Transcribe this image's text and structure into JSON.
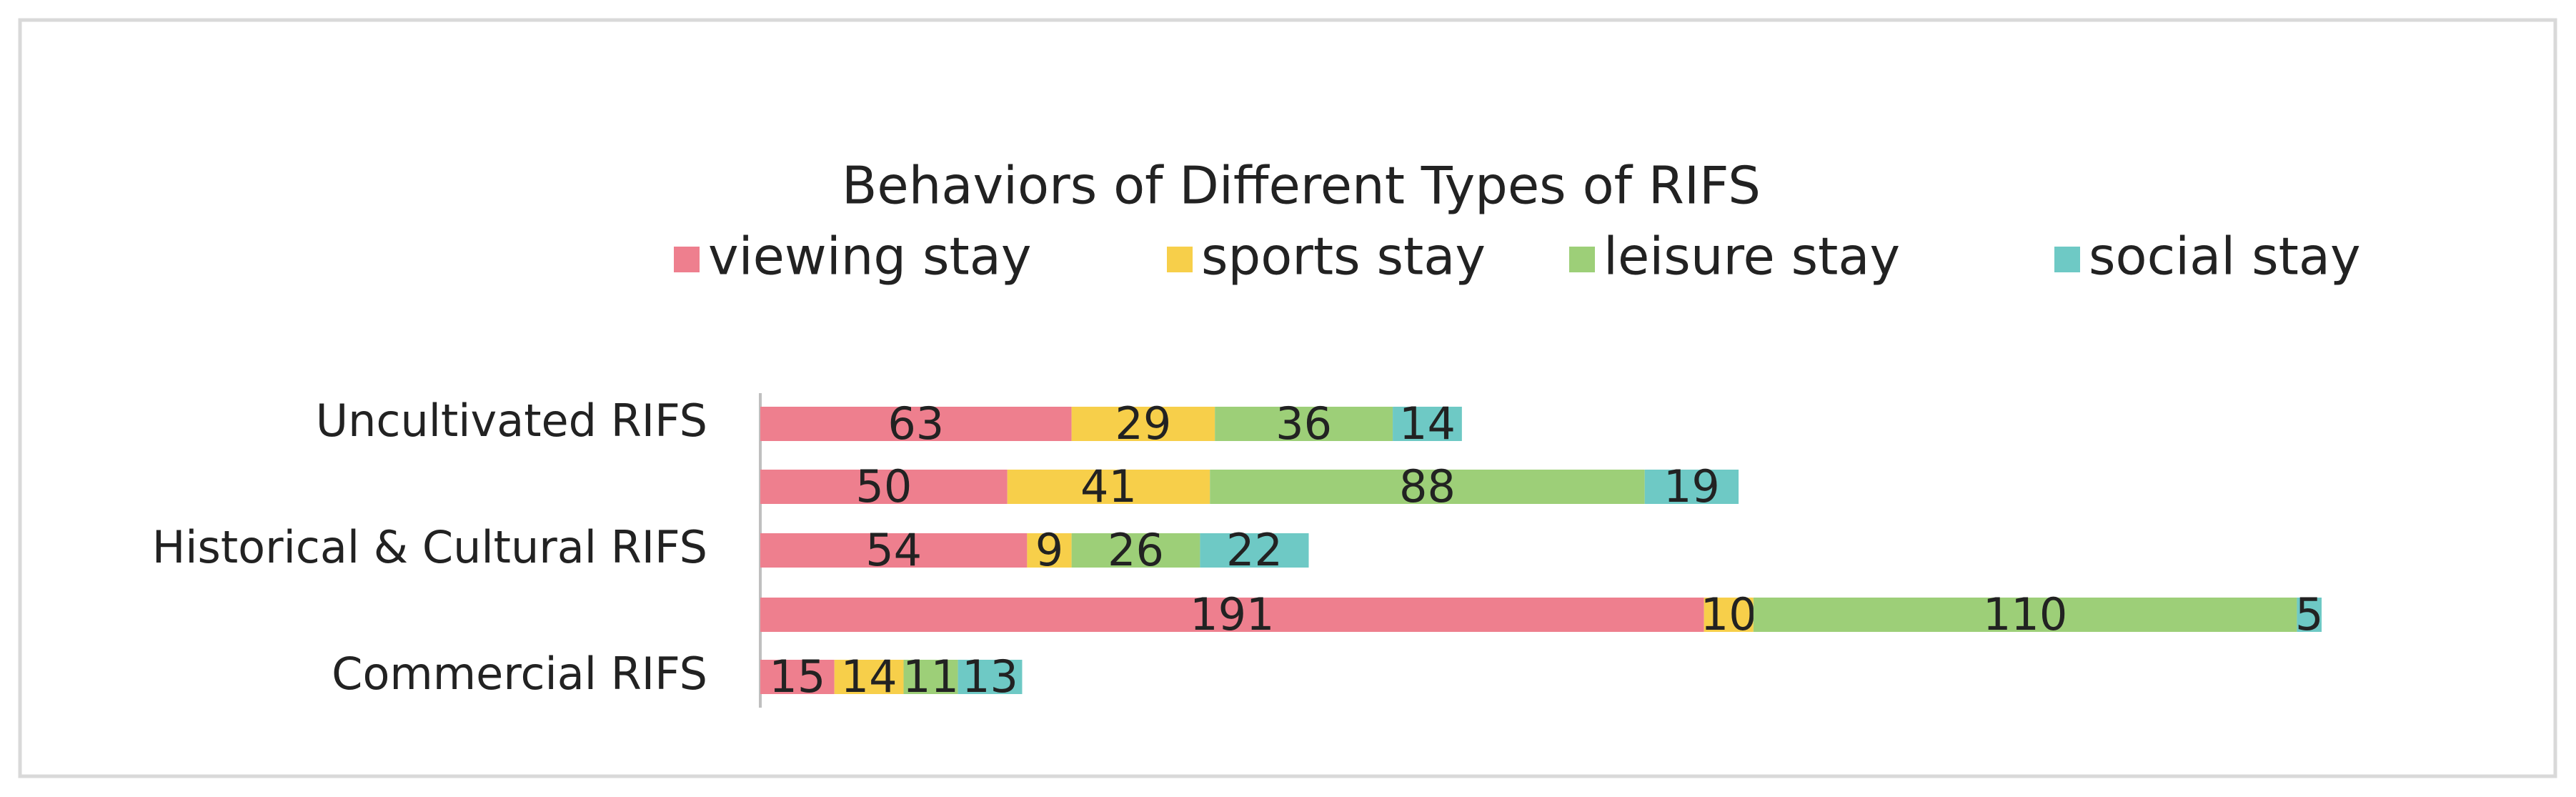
{
  "chart_data": {
    "type": "stacked-bar-horizontal",
    "title": "Behaviors of  Different Types of RIFS",
    "categories": [
      "Uncultivated RIFS",
      null,
      "Historical & Cultural RIFS",
      null,
      "Commercial RIFS"
    ],
    "series": [
      {
        "name": "viewing stay",
        "color": "#ee7f8e",
        "values": [
          63,
          50,
          54,
          191,
          15
        ]
      },
      {
        "name": "sports stay",
        "color": "#f7cf4a",
        "values": [
          29,
          41,
          9,
          10,
          14
        ]
      },
      {
        "name": "leisure stay",
        "color": "#9dcf78",
        "values": [
          36,
          88,
          26,
          110,
          11
        ]
      },
      {
        "name": "social stay",
        "color": "#6ec9c5",
        "values": [
          14,
          19,
          22,
          5,
          13
        ]
      }
    ],
    "legend": "top"
  }
}
